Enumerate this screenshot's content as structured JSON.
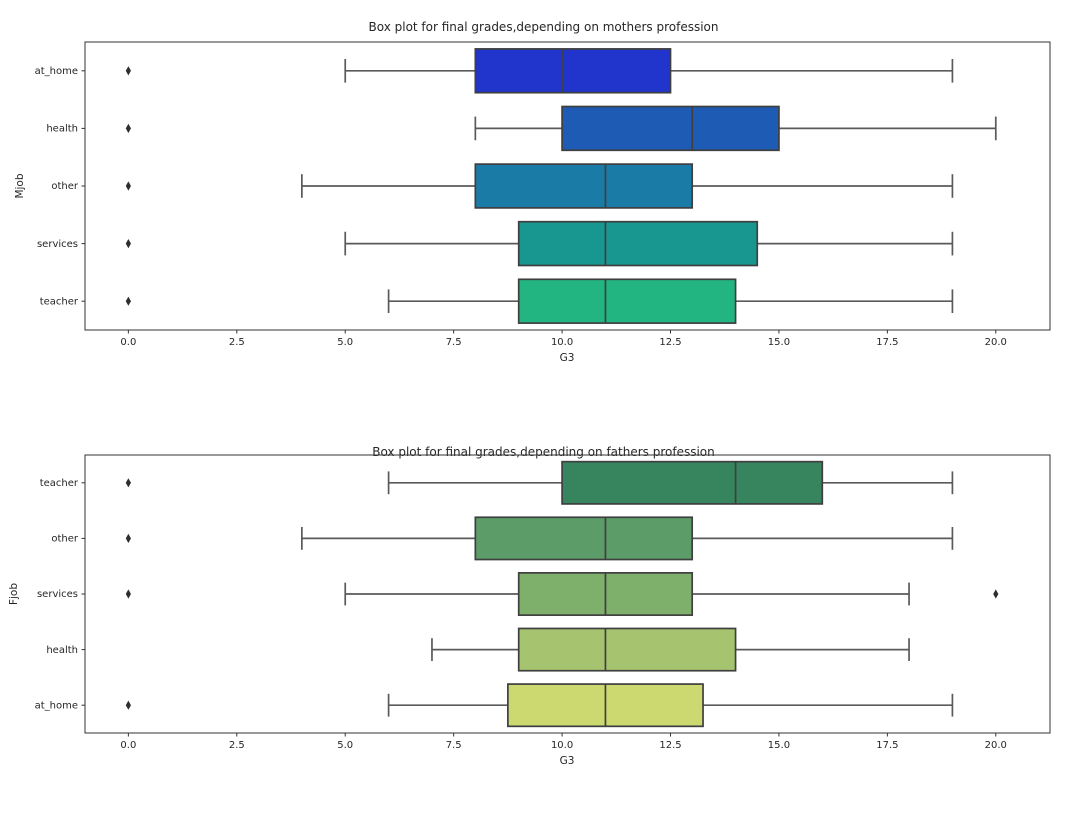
{
  "figure": {
    "background": "#ffffff"
  },
  "style": {
    "spine_color": "#333333",
    "text_color": "#262626",
    "whisker_color": "#5a5a5a",
    "box_edge_color": "#3f3f3f",
    "median_color": "#3f3f3f",
    "flier_color": "#2e2e2e"
  },
  "chart_data": [
    {
      "type": "boxplot",
      "orientation": "horizontal",
      "title": "Box plot for final grades,depending on mothers profession",
      "xlabel": "G3",
      "ylabel": "Mjob",
      "xlim": [
        -1,
        21.25
      ],
      "grid": false,
      "xtick_values": [
        0,
        2.5,
        5,
        7.5,
        10,
        12.5,
        15,
        17.5,
        20
      ],
      "xtick_labels": [
        "0.0",
        "2.5",
        "5.0",
        "7.5",
        "10.0",
        "12.5",
        "15.0",
        "17.5",
        "20.0"
      ],
      "categories": [
        "at_home",
        "health",
        "other",
        "services",
        "teacher"
      ],
      "series": [
        {
          "category": "at_home",
          "whislo": 5,
          "q1": 8,
          "med": 10,
          "q3": 12.5,
          "whishi": 19,
          "outliers": [
            0
          ],
          "color": "#2134cc"
        },
        {
          "category": "health",
          "whislo": 8,
          "q1": 10,
          "med": 13,
          "q3": 15,
          "whishi": 20,
          "outliers": [
            0
          ],
          "color": "#1e5bb4"
        },
        {
          "category": "other",
          "whislo": 4,
          "q1": 8,
          "med": 11,
          "q3": 13,
          "whishi": 19,
          "outliers": [
            0
          ],
          "color": "#1b7ba7"
        },
        {
          "category": "services",
          "whislo": 5,
          "q1": 9,
          "med": 11,
          "q3": 14.5,
          "whishi": 19,
          "outliers": [
            0
          ],
          "color": "#189690"
        },
        {
          "category": "teacher",
          "whislo": 6,
          "q1": 9,
          "med": 11,
          "q3": 14,
          "whishi": 19,
          "outliers": [
            0
          ],
          "color": "#22b581"
        }
      ]
    },
    {
      "type": "boxplot",
      "orientation": "horizontal",
      "title": "Box plot for final grades,depending on fathers profession",
      "xlabel": "G3",
      "ylabel": "Fjob",
      "xlim": [
        -1,
        21.25
      ],
      "grid": false,
      "xtick_values": [
        0,
        2.5,
        5,
        7.5,
        10,
        12.5,
        15,
        17.5,
        20
      ],
      "xtick_labels": [
        "0.0",
        "2.5",
        "5.0",
        "7.5",
        "10.0",
        "12.5",
        "15.0",
        "17.5",
        "20.0"
      ],
      "categories": [
        "teacher",
        "other",
        "services",
        "health",
        "at_home"
      ],
      "series": [
        {
          "category": "teacher",
          "whislo": 6,
          "q1": 10,
          "med": 14,
          "q3": 16,
          "whishi": 19,
          "outliers": [
            0
          ],
          "color": "#36855f"
        },
        {
          "category": "other",
          "whislo": 4,
          "q1": 8,
          "med": 11,
          "q3": 13,
          "whishi": 19,
          "outliers": [
            0
          ],
          "color": "#5b9c68"
        },
        {
          "category": "services",
          "whislo": 5,
          "q1": 9,
          "med": 11,
          "q3": 13,
          "whishi": 18,
          "outliers": [
            0,
            20
          ],
          "color": "#7fb06b"
        },
        {
          "category": "health",
          "whislo": 7,
          "q1": 9,
          "med": 11,
          "q3": 14,
          "whishi": 18,
          "outliers": [],
          "color": "#a6c46f"
        },
        {
          "category": "at_home",
          "whislo": 6,
          "q1": 8.75,
          "med": 11,
          "q3": 13.25,
          "whishi": 19,
          "outliers": [
            0
          ],
          "color": "#ccd971"
        }
      ]
    }
  ]
}
